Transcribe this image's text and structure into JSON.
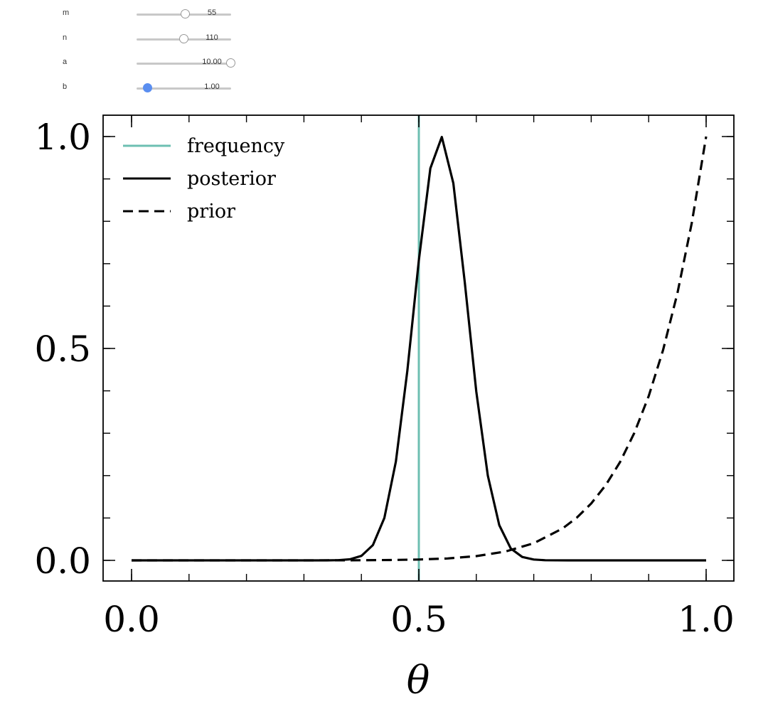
{
  "controls": {
    "sliders": [
      {
        "name": "m",
        "value": "55",
        "position": 0.52,
        "active": false
      },
      {
        "name": "n",
        "value": "110",
        "position": 0.5,
        "active": false
      },
      {
        "name": "a",
        "value": "10.00",
        "position": 1.0,
        "active": false
      },
      {
        "name": "b",
        "value": "1.00",
        "position": 0.12,
        "active": true
      }
    ]
  },
  "chart_data": {
    "type": "line",
    "xlabel": "θ",
    "ylabel": "",
    "xlim": [
      -0.05,
      1.05
    ],
    "ylim": [
      -0.05,
      1.05
    ],
    "xticks": [
      {
        "v": 0.0,
        "label": "0.0"
      },
      {
        "v": 0.5,
        "label": "0.5"
      },
      {
        "v": 1.0,
        "label": "1.0"
      }
    ],
    "yticks": [
      {
        "v": 0.0,
        "label": "0.0"
      },
      {
        "v": 0.5,
        "label": "0.5"
      },
      {
        "v": 1.0,
        "label": "1.0"
      }
    ],
    "minor_tick_step": 0.1,
    "grid": false,
    "legend_placement": "top-left",
    "colors": {
      "frequency": "#6dbfb2",
      "posterior": "#000000",
      "prior": "#000000"
    },
    "series": [
      {
        "name": "frequency",
        "style": "solid",
        "vline": 0.5
      },
      {
        "name": "posterior",
        "style": "solid",
        "x": [
          0.0,
          0.1,
          0.2,
          0.3,
          0.34,
          0.36,
          0.38,
          0.4,
          0.42,
          0.44,
          0.46,
          0.48,
          0.5,
          0.52,
          0.54,
          0.56,
          0.58,
          0.6,
          0.62,
          0.64,
          0.66,
          0.68,
          0.7,
          0.72,
          0.76,
          0.8,
          0.9,
          1.0
        ],
        "y": [
          0,
          0,
          0,
          0,
          0,
          0.0005,
          0.0026,
          0.0105,
          0.036,
          0.1,
          0.233,
          0.447,
          0.708,
          0.925,
          0.999,
          0.89,
          0.656,
          0.398,
          0.2,
          0.083,
          0.028,
          0.008,
          0.002,
          0.0004,
          0,
          0,
          0,
          0
        ]
      },
      {
        "name": "prior",
        "style": "dashed",
        "x": [
          0.0,
          0.1,
          0.2,
          0.3,
          0.4,
          0.45,
          0.5,
          0.55,
          0.6,
          0.65,
          0.7,
          0.75,
          0.775,
          0.8,
          0.825,
          0.85,
          0.875,
          0.9,
          0.925,
          0.95,
          0.975,
          1.0
        ],
        "y": [
          0,
          0,
          0,
          2e-05,
          0.00026,
          0.00076,
          0.00195,
          0.0046,
          0.0101,
          0.0207,
          0.0404,
          0.0751,
          0.1009,
          0.1342,
          0.177,
          0.2316,
          0.3007,
          0.3874,
          0.496,
          0.6302,
          0.796,
          1.0
        ]
      }
    ]
  }
}
